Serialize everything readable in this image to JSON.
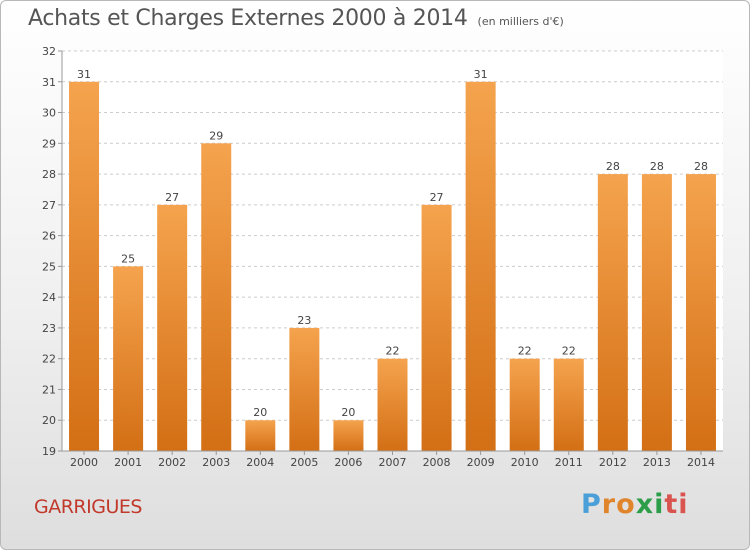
{
  "header": {
    "title": "Achats et Charges Externes 2000 à 2014",
    "unit": "(en milliers d'€)"
  },
  "footer": {
    "commune": "GARRIGUES",
    "logo_letters": [
      "P",
      "r",
      "o",
      "x",
      "i",
      "t",
      "i"
    ]
  },
  "colors": {
    "bar_top": "#f5a34e",
    "bar_bottom": "#d36f15",
    "commune_text": "#c0392b",
    "logo": [
      "#4a9fd8",
      "#e0852b",
      "#e0852b",
      "#2c9e4a",
      "#2c9e4a",
      "#d9534f",
      "#d9534f"
    ]
  },
  "chart_data": {
    "type": "bar",
    "title": "Achats et Charges Externes 2000 à 2014",
    "subtitle": "(en milliers d'€)",
    "xlabel": "",
    "ylabel": "",
    "categories": [
      "2000",
      "2001",
      "2002",
      "2003",
      "2004",
      "2005",
      "2006",
      "2007",
      "2008",
      "2009",
      "2010",
      "2011",
      "2012",
      "2013",
      "2014"
    ],
    "values": [
      31,
      25,
      27,
      29,
      20,
      23,
      20,
      22,
      27,
      31,
      22,
      22,
      28,
      28,
      28
    ],
    "ylim": [
      19,
      32
    ],
    "yticks": [
      19,
      20,
      21,
      22,
      23,
      24,
      25,
      26,
      27,
      28,
      29,
      30,
      31,
      32
    ],
    "grid": true,
    "data_labels": true
  }
}
